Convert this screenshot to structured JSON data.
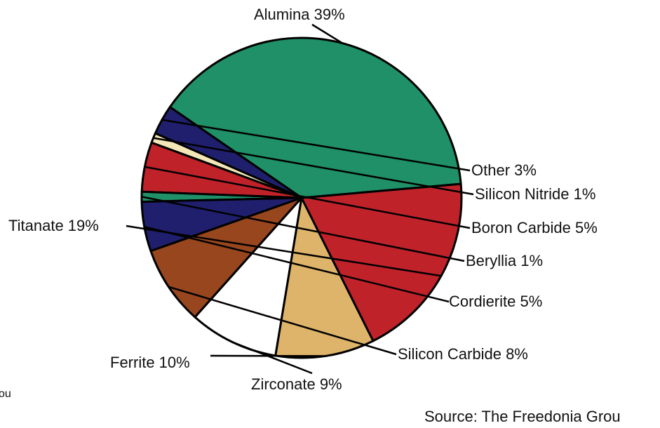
{
  "chart_data": {
    "type": "pie",
    "slices": [
      {
        "label": "Alumina",
        "value": 39,
        "color": "#1f9068"
      },
      {
        "label": "Other",
        "value": 3,
        "color": "#1f1f6e"
      },
      {
        "label": "Silicon Nitride",
        "value": 1,
        "color": "#f3e7b8"
      },
      {
        "label": "Boron Carbide",
        "value": 5,
        "color": "#c0222a"
      },
      {
        "label": "Beryllia",
        "value": 1,
        "color": "#1f9068"
      },
      {
        "label": "Cordierite",
        "value": 5,
        "color": "#1f1f6e"
      },
      {
        "label": "Silicon Carbide",
        "value": 8,
        "color": "#97461e"
      },
      {
        "label": "Zirconate",
        "value": 9,
        "color": "#ffffff"
      },
      {
        "label": "Ferrite",
        "value": 10,
        "color": "#ddb46a"
      },
      {
        "label": "Titanate",
        "value": 19,
        "color": "#c0222a"
      }
    ],
    "label_texts": [
      "Alumina  39%",
      "Other  3%",
      "Silicon Nitride  1%",
      "Boron Carbide  5%",
      "Beryllia  1%",
      "Cordierite  5%",
      "Silicon Carbide  8%",
      "Zirconate  9%",
      "Ferrite  10%",
      "Titanate  19%"
    ]
  },
  "source_text": "Source: The Freedonia Grou",
  "edge_fragment": "ou"
}
